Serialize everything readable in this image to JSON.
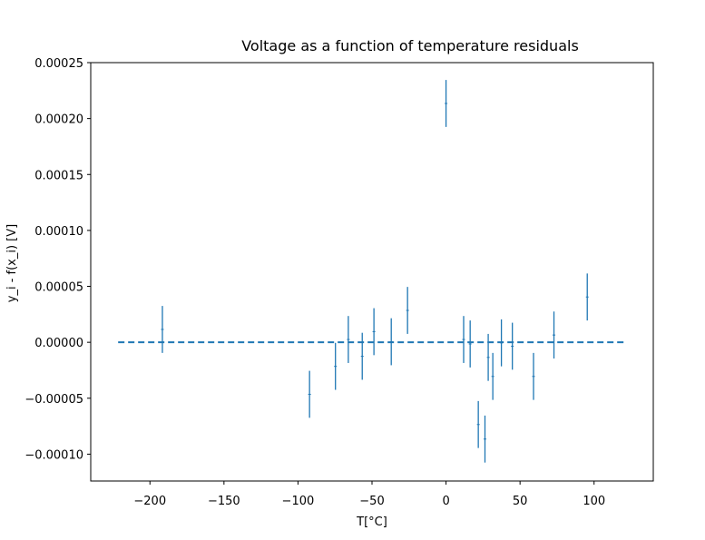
{
  "chart_data": {
    "type": "scatter",
    "title": "Voltage as a function of temperature residuals",
    "xlabel": "T[°C]",
    "ylabel": "y_i - f(x_i) [V]",
    "xlim": [
      -240,
      140
    ],
    "ylim": [
      -0.000124,
      0.00025
    ],
    "xticks": [
      -200,
      -150,
      -100,
      -50,
      0,
      50,
      100
    ],
    "xtick_labels": [
      "−200",
      "−150",
      "−100",
      "−50",
      "0",
      "50",
      "100"
    ],
    "yticks": [
      -0.0001,
      -5e-05,
      0.0,
      5e-05,
      0.0001,
      0.00015,
      0.0002,
      0.00025
    ],
    "ytick_labels": [
      "−0.00010",
      "−0.00005",
      "0.00000",
      "0.00005",
      "0.00010",
      "0.00015",
      "0.00020",
      "0.00025"
    ],
    "grid": false,
    "zero_line": {
      "y": 0.0,
      "x": [
        -221.5,
        122
      ],
      "style": "dashed",
      "color": "#1f77b4"
    },
    "series": [
      {
        "color": "#1f77b4",
        "points": [
          {
            "x": -191.6,
            "y": 1.15e-05,
            "err": 2.1e-05
          },
          {
            "x": -92.2,
            "y": -4.65e-05,
            "err": 2.1e-05
          },
          {
            "x": -74.7,
            "y": -2.15e-05,
            "err": 2.1e-05
          },
          {
            "x": -66.0,
            "y": 2.5e-06,
            "err": 2.1e-05
          },
          {
            "x": -56.6,
            "y": -1.25e-05,
            "err": 2.1e-05
          },
          {
            "x": -48.7,
            "y": 9.5e-06,
            "err": 2.1e-05
          },
          {
            "x": -37.0,
            "y": 5e-07,
            "err": 2.1e-05
          },
          {
            "x": -26.0,
            "y": 2.85e-05,
            "err": 2.1e-05
          },
          {
            "x": 0.0,
            "y": 0.0002135,
            "err": 2.1e-05
          },
          {
            "x": 11.9,
            "y": 2.5e-06,
            "err": 2.1e-05
          },
          {
            "x": 16.3,
            "y": -1.5e-06,
            "err": 2.1e-05
          },
          {
            "x": 21.8,
            "y": -7.35e-05,
            "err": 2.1e-05
          },
          {
            "x": 26.3,
            "y": -8.65e-05,
            "err": 2.1e-05
          },
          {
            "x": 28.5,
            "y": -1.35e-05,
            "err": 2.1e-05
          },
          {
            "x": 31.6,
            "y": -3.05e-05,
            "err": 2.1e-05
          },
          {
            "x": 37.4,
            "y": -5e-07,
            "err": 2.1e-05
          },
          {
            "x": 44.8,
            "y": -3.5e-06,
            "err": 2.1e-05
          },
          {
            "x": 59.1,
            "y": -3.05e-05,
            "err": 2.1e-05
          },
          {
            "x": 72.9,
            "y": 6.5e-06,
            "err": 2.1e-05
          },
          {
            "x": 95.4,
            "y": 4.05e-05,
            "err": 2.1e-05
          }
        ]
      }
    ]
  }
}
